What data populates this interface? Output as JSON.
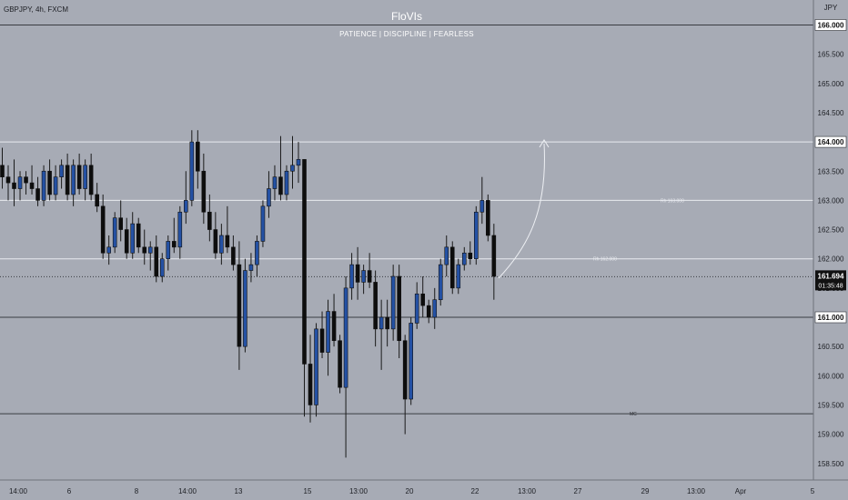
{
  "header": {
    "symbol": "GBPJPY, 4h, FXCM",
    "title": "FloVIs",
    "subtitle": "PATIENCE  |  DISCIPLINE  |  FEARLESS"
  },
  "colors": {
    "background": "#a7abb5",
    "bull": "#2451a4",
    "bear": "#0d0d0d",
    "wick": "#1a1a1a",
    "level_white": "#e9ebf0",
    "level_dark": "#3a3c42",
    "projection": "#eef0f4",
    "price_tag_bg": "#111111",
    "level_tag_bg": "#ffffff"
  },
  "chart_data": {
    "type": "candlestick",
    "symbol": "GBPJPY",
    "timeframe": "4h",
    "currency": "JPY",
    "ylim": [
      158.25,
      166.3
    ],
    "y_ticks": [
      "166.000",
      "165.500",
      "165.000",
      "164.500",
      "164.000",
      "163.500",
      "163.000",
      "162.500",
      "162.000",
      "161.500",
      "161.000",
      "160.500",
      "160.000",
      "159.500",
      "159.000",
      "158.500"
    ],
    "x_ticks": [
      "14:00",
      "6",
      "8",
      "14:00",
      "13",
      "15",
      "13:00",
      "20",
      "22",
      "13:00",
      "27",
      "29",
      "13:00",
      "Apr",
      "5"
    ],
    "candles": [
      {
        "o": 163.6,
        "h": 163.9,
        "l": 163.2,
        "c": 163.4
      },
      {
        "o": 163.4,
        "h": 163.6,
        "l": 163.0,
        "c": 163.3
      },
      {
        "o": 163.3,
        "h": 163.7,
        "l": 162.9,
        "c": 163.2
      },
      {
        "o": 163.2,
        "h": 163.5,
        "l": 163.0,
        "c": 163.4
      },
      {
        "o": 163.4,
        "h": 163.5,
        "l": 163.1,
        "c": 163.3
      },
      {
        "o": 163.3,
        "h": 163.6,
        "l": 163.1,
        "c": 163.2
      },
      {
        "o": 163.2,
        "h": 163.4,
        "l": 162.9,
        "c": 163.0
      },
      {
        "o": 163.0,
        "h": 163.6,
        "l": 162.9,
        "c": 163.5
      },
      {
        "o": 163.5,
        "h": 163.7,
        "l": 163.0,
        "c": 163.1
      },
      {
        "o": 163.1,
        "h": 163.6,
        "l": 163.0,
        "c": 163.4
      },
      {
        "o": 163.4,
        "h": 163.7,
        "l": 163.2,
        "c": 163.6
      },
      {
        "o": 163.6,
        "h": 163.8,
        "l": 163.0,
        "c": 163.1
      },
      {
        "o": 163.1,
        "h": 163.7,
        "l": 162.9,
        "c": 163.6
      },
      {
        "o": 163.6,
        "h": 163.8,
        "l": 163.1,
        "c": 163.2
      },
      {
        "o": 163.2,
        "h": 163.7,
        "l": 163.0,
        "c": 163.6
      },
      {
        "o": 163.6,
        "h": 163.8,
        "l": 163.0,
        "c": 163.1
      },
      {
        "o": 163.1,
        "h": 163.3,
        "l": 162.8,
        "c": 162.9
      },
      {
        "o": 162.9,
        "h": 163.1,
        "l": 162.0,
        "c": 162.1
      },
      {
        "o": 162.1,
        "h": 162.4,
        "l": 161.9,
        "c": 162.2
      },
      {
        "o": 162.2,
        "h": 162.8,
        "l": 162.1,
        "c": 162.7
      },
      {
        "o": 162.7,
        "h": 163.0,
        "l": 162.3,
        "c": 162.5
      },
      {
        "o": 162.5,
        "h": 162.7,
        "l": 162.0,
        "c": 162.1
      },
      {
        "o": 162.1,
        "h": 162.8,
        "l": 162.0,
        "c": 162.6
      },
      {
        "o": 162.6,
        "h": 162.7,
        "l": 162.1,
        "c": 162.2
      },
      {
        "o": 162.2,
        "h": 162.5,
        "l": 161.9,
        "c": 162.1
      },
      {
        "o": 162.1,
        "h": 162.3,
        "l": 161.8,
        "c": 162.2
      },
      {
        "o": 162.2,
        "h": 162.4,
        "l": 161.6,
        "c": 161.7
      },
      {
        "o": 161.7,
        "h": 162.1,
        "l": 161.6,
        "c": 162.0
      },
      {
        "o": 162.0,
        "h": 162.4,
        "l": 161.8,
        "c": 162.3
      },
      {
        "o": 162.3,
        "h": 162.7,
        "l": 162.1,
        "c": 162.2
      },
      {
        "o": 162.2,
        "h": 162.9,
        "l": 162.0,
        "c": 162.8
      },
      {
        "o": 162.8,
        "h": 163.5,
        "l": 162.6,
        "c": 163.0
      },
      {
        "o": 163.0,
        "h": 164.2,
        "l": 162.9,
        "c": 164.0
      },
      {
        "o": 164.0,
        "h": 164.2,
        "l": 163.2,
        "c": 163.5
      },
      {
        "o": 163.5,
        "h": 163.8,
        "l": 162.6,
        "c": 162.8
      },
      {
        "o": 162.8,
        "h": 163.1,
        "l": 162.3,
        "c": 162.5
      },
      {
        "o": 162.5,
        "h": 162.8,
        "l": 162.0,
        "c": 162.1
      },
      {
        "o": 162.1,
        "h": 162.6,
        "l": 161.9,
        "c": 162.4
      },
      {
        "o": 162.4,
        "h": 162.9,
        "l": 162.1,
        "c": 162.2
      },
      {
        "o": 162.2,
        "h": 162.4,
        "l": 161.8,
        "c": 161.9
      },
      {
        "o": 161.9,
        "h": 162.3,
        "l": 160.1,
        "c": 160.5
      },
      {
        "o": 160.5,
        "h": 162.0,
        "l": 160.4,
        "c": 161.8
      },
      {
        "o": 161.8,
        "h": 162.1,
        "l": 161.6,
        "c": 161.9
      },
      {
        "o": 161.9,
        "h": 162.4,
        "l": 161.7,
        "c": 162.3
      },
      {
        "o": 162.3,
        "h": 163.0,
        "l": 162.2,
        "c": 162.9
      },
      {
        "o": 162.9,
        "h": 163.5,
        "l": 162.7,
        "c": 163.2
      },
      {
        "o": 163.2,
        "h": 163.6,
        "l": 163.0,
        "c": 163.4
      },
      {
        "o": 163.4,
        "h": 164.1,
        "l": 163.0,
        "c": 163.1
      },
      {
        "o": 163.1,
        "h": 163.6,
        "l": 163.0,
        "c": 163.5
      },
      {
        "o": 163.5,
        "h": 164.1,
        "l": 163.2,
        "c": 163.6
      },
      {
        "o": 163.6,
        "h": 164.0,
        "l": 163.3,
        "c": 163.7
      },
      {
        "o": 163.7,
        "h": 163.7,
        "l": 159.3,
        "c": 160.2
      },
      {
        "o": 160.2,
        "h": 160.7,
        "l": 159.2,
        "c": 159.5
      },
      {
        "o": 159.5,
        "h": 160.9,
        "l": 159.3,
        "c": 160.8
      },
      {
        "o": 160.8,
        "h": 161.1,
        "l": 160.3,
        "c": 160.4
      },
      {
        "o": 160.4,
        "h": 161.3,
        "l": 160.0,
        "c": 161.1
      },
      {
        "o": 161.1,
        "h": 161.4,
        "l": 160.5,
        "c": 160.6
      },
      {
        "o": 160.6,
        "h": 160.7,
        "l": 159.7,
        "c": 159.8
      },
      {
        "o": 159.8,
        "h": 161.7,
        "l": 158.6,
        "c": 161.5
      },
      {
        "o": 161.5,
        "h": 162.1,
        "l": 161.3,
        "c": 161.9
      },
      {
        "o": 161.9,
        "h": 162.2,
        "l": 161.3,
        "c": 161.6
      },
      {
        "o": 161.6,
        "h": 161.9,
        "l": 161.4,
        "c": 161.8
      },
      {
        "o": 161.8,
        "h": 162.1,
        "l": 161.5,
        "c": 161.6
      },
      {
        "o": 161.6,
        "h": 161.8,
        "l": 160.5,
        "c": 160.8
      },
      {
        "o": 160.8,
        "h": 161.3,
        "l": 160.1,
        "c": 161.0
      },
      {
        "o": 161.0,
        "h": 161.3,
        "l": 160.5,
        "c": 160.8
      },
      {
        "o": 160.8,
        "h": 161.9,
        "l": 160.6,
        "c": 161.7
      },
      {
        "o": 161.7,
        "h": 161.9,
        "l": 160.3,
        "c": 160.6
      },
      {
        "o": 160.6,
        "h": 160.7,
        "l": 159.0,
        "c": 159.6
      },
      {
        "o": 159.6,
        "h": 161.0,
        "l": 159.5,
        "c": 160.9
      },
      {
        "o": 160.9,
        "h": 161.6,
        "l": 160.8,
        "c": 161.4
      },
      {
        "o": 161.4,
        "h": 161.7,
        "l": 161.0,
        "c": 161.2
      },
      {
        "o": 161.2,
        "h": 161.3,
        "l": 160.9,
        "c": 161.0
      },
      {
        "o": 161.0,
        "h": 161.5,
        "l": 160.8,
        "c": 161.3
      },
      {
        "o": 161.3,
        "h": 162.0,
        "l": 161.2,
        "c": 161.9
      },
      {
        "o": 161.9,
        "h": 162.4,
        "l": 161.7,
        "c": 162.2
      },
      {
        "o": 162.2,
        "h": 162.3,
        "l": 161.4,
        "c": 161.5
      },
      {
        "o": 161.5,
        "h": 162.0,
        "l": 161.4,
        "c": 161.9
      },
      {
        "o": 161.9,
        "h": 162.2,
        "l": 161.8,
        "c": 162.1
      },
      {
        "o": 162.1,
        "h": 162.3,
        "l": 161.9,
        "c": 162.0
      },
      {
        "o": 162.0,
        "h": 162.9,
        "l": 161.9,
        "c": 162.8
      },
      {
        "o": 162.8,
        "h": 163.4,
        "l": 162.6,
        "c": 163.0
      },
      {
        "o": 163.0,
        "h": 163.1,
        "l": 162.3,
        "c": 162.4
      },
      {
        "o": 162.4,
        "h": 162.6,
        "l": 161.3,
        "c": 161.7
      }
    ],
    "levels": [
      {
        "price": 166.0,
        "tag": "166.000",
        "style": "dark"
      },
      {
        "price": 164.0,
        "tag": "164.000",
        "style": "white"
      },
      {
        "price": 163.0,
        "label": "Rh 163.000",
        "style": "white"
      },
      {
        "price": 162.0,
        "label": "Rh 162.000",
        "style": "white"
      },
      {
        "price": 161.694,
        "style": "dotted"
      },
      {
        "price": 161.0,
        "tag": "161.000",
        "style": "dark"
      },
      {
        "price": 159.35,
        "label": "MC",
        "style": "dark"
      }
    ],
    "current_price": {
      "value": "161.694",
      "countdown": "01:35:48"
    }
  }
}
